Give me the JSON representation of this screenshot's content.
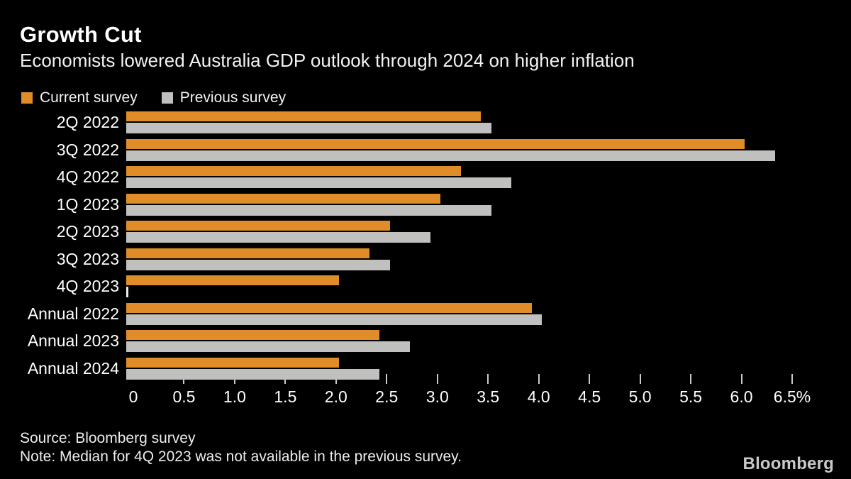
{
  "header": {
    "title": "Growth Cut",
    "subtitle": "Economists lowered Australia GDP outlook through 2024 on higher inflation"
  },
  "legend": [
    {
      "label": "Current survey",
      "color": "#e08c28"
    },
    {
      "label": "Previous survey",
      "color": "#c0c0be"
    }
  ],
  "chart_data": {
    "type": "bar",
    "orientation": "horizontal",
    "title": "Growth Cut",
    "subtitle": "Economists lowered Australia GDP outlook through 2024 on higher inflation",
    "categories": [
      "2Q 2022",
      "3Q 2022",
      "4Q 2022",
      "1Q 2023",
      "2Q 2023",
      "3Q 2023",
      "4Q 2023",
      "Annual 2022",
      "Annual 2023",
      "Annual 2024"
    ],
    "series": [
      {
        "name": "Current survey",
        "color": "#e08c28",
        "values": [
          3.5,
          6.1,
          3.3,
          3.1,
          2.6,
          2.4,
          2.1,
          4.0,
          2.5,
          2.1
        ]
      },
      {
        "name": "Previous survey",
        "color": "#c0c0be",
        "values": [
          3.6,
          6.4,
          3.8,
          3.6,
          3.0,
          2.6,
          null,
          4.1,
          2.8,
          2.5
        ]
      }
    ],
    "missing_value_note": "4Q 2023 previous survey median not available (rendered as tiny sliver)",
    "missing_sliver_color": "#ededeb",
    "xlabel": "",
    "ylabel": "",
    "xlim": [
      0,
      6.5
    ],
    "x_tick_values": [
      0,
      0.5,
      1.0,
      1.5,
      2.0,
      2.5,
      3.0,
      3.5,
      4.0,
      4.5,
      5.0,
      5.5,
      6.0,
      6.5
    ],
    "x_tick_labels": [
      "0",
      "0.5",
      "1.0",
      "1.5",
      "2.0",
      "2.5",
      "3.0",
      "3.5",
      "4.0",
      "4.5",
      "5.0",
      "5.5",
      "6.0",
      "6.5%"
    ],
    "grid": false,
    "legend_position": "top-left",
    "background": "#000000"
  },
  "footer": {
    "source": "Source: Bloomberg survey",
    "note": "Note: Median for 4Q 2023 was not available in the previous survey.",
    "logo": "Bloomberg"
  }
}
